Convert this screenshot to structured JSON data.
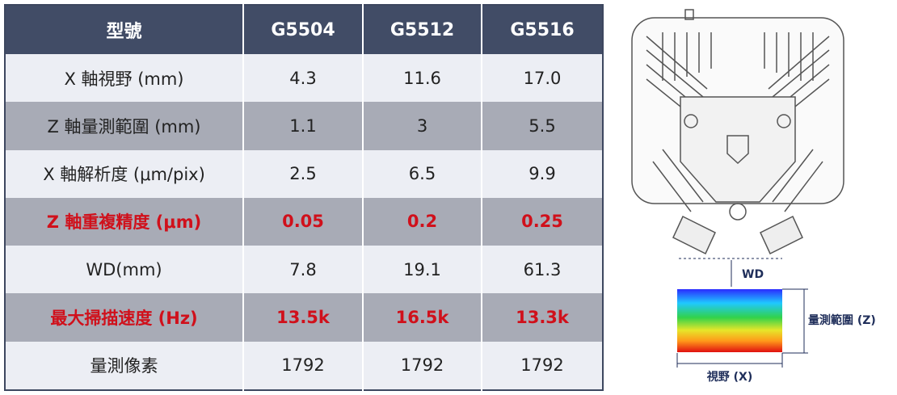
{
  "table": {
    "header": [
      "型號",
      "G5504",
      "G5512",
      "G5516"
    ],
    "rows": [
      [
        "X 軸視野 (mm)",
        "4.3",
        "11.6",
        "17.0"
      ],
      [
        "Z 軸量測範圍 (mm)",
        "1.1",
        "3",
        "5.5"
      ],
      [
        "X 軸解析度 (μm/pix)",
        "2.5",
        "6.5",
        "9.9"
      ],
      [
        "Z 軸重複精度 (μm)",
        "0.05",
        "0.2",
        "0.25"
      ],
      [
        "WD(mm)",
        "7.8",
        "19.1",
        "61.3"
      ],
      [
        "最大掃描速度 (Hz)",
        "13.5k",
        "16.5k",
        "13.3k"
      ],
      [
        "量測像素",
        "1792",
        "1792",
        "1792"
      ]
    ]
  },
  "diagram": {
    "wd_label": "WD",
    "z_label": "量測範圍 (Z)",
    "x_label": "視野 (X)"
  }
}
